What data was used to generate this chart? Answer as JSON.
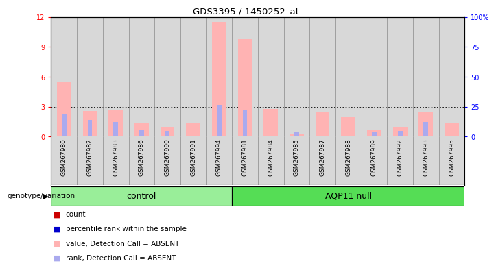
{
  "title": "GDS3395 / 1450252_at",
  "samples": [
    "GSM267980",
    "GSM267982",
    "GSM267983",
    "GSM267986",
    "GSM267990",
    "GSM267991",
    "GSM267994",
    "GSM267981",
    "GSM267984",
    "GSM267985",
    "GSM267987",
    "GSM267988",
    "GSM267989",
    "GSM267992",
    "GSM267993",
    "GSM267995"
  ],
  "groups": [
    "control",
    "control",
    "control",
    "control",
    "control",
    "control",
    "control",
    "AQP11 null",
    "AQP11 null",
    "AQP11 null",
    "AQP11 null",
    "AQP11 null",
    "AQP11 null",
    "AQP11 null",
    "AQP11 null",
    "AQP11 null"
  ],
  "pink_values": [
    5.5,
    2.6,
    2.7,
    1.4,
    0.9,
    1.4,
    11.5,
    9.8,
    2.8,
    0.3,
    2.4,
    2.0,
    0.7,
    0.9,
    2.5,
    1.4
  ],
  "blue_values": [
    2.2,
    1.7,
    1.5,
    0.7,
    0.6,
    0.0,
    3.2,
    2.7,
    0.0,
    0.5,
    0.0,
    0.0,
    0.5,
    0.6,
    1.5,
    0.0
  ],
  "ylim_left": [
    0,
    12
  ],
  "ylim_right": [
    0,
    100
  ],
  "yticks_left": [
    0,
    3,
    6,
    9,
    12
  ],
  "ytick_labels_left": [
    "0",
    "3",
    "6",
    "9",
    "12"
  ],
  "yticks_right": [
    0,
    25,
    50,
    75,
    100
  ],
  "ytick_labels_right": [
    "0",
    "25",
    "50",
    "75",
    "100%"
  ],
  "bg_color": "#d8d8d8",
  "cell_sep_color": "#aaaaaa",
  "grid_color": "black",
  "pink_bar_color": "#ffb3b3",
  "blue_bar_color": "#aaaaee",
  "group_label": "genotype/variation",
  "group_control_color": "#99ee99",
  "group_aqp_color": "#55dd55",
  "legend_colors": [
    "#cc0000",
    "#0000cc",
    "#ffb3b3",
    "#aaaaee"
  ],
  "legend_labels": [
    "count",
    "percentile rank within the sample",
    "value, Detection Call = ABSENT",
    "rank, Detection Call = ABSENT"
  ]
}
